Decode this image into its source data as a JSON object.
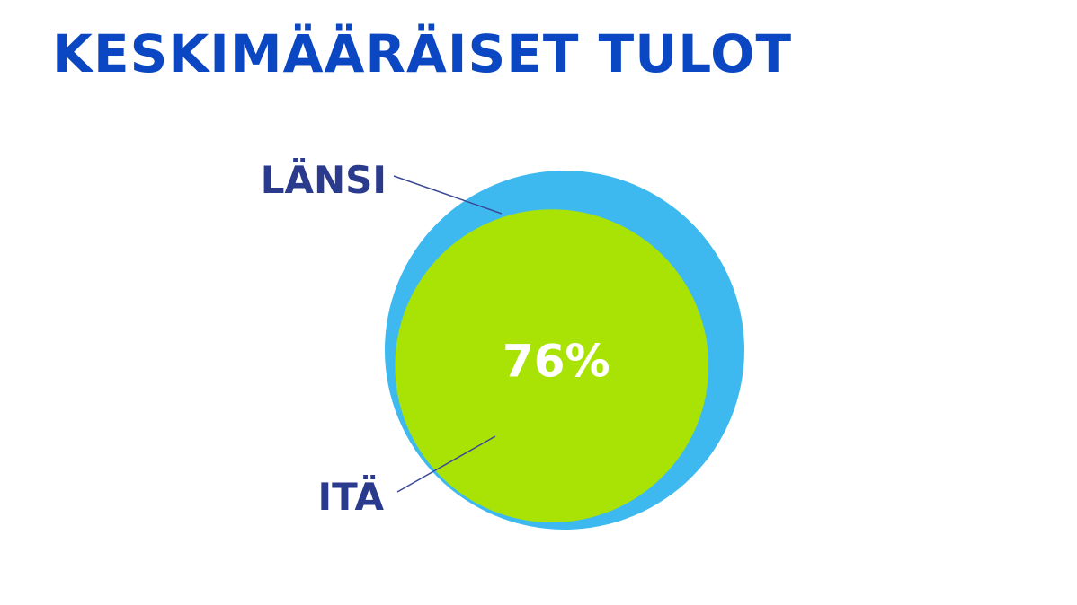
{
  "chart_data": {
    "type": "area-comparison-circles",
    "title": "KESKIMÄÄRÄISET TULOT",
    "series": [
      {
        "name": "LÄNSI",
        "value": 100,
        "color": "#3eb9f0"
      },
      {
        "name": "ITÄ",
        "value": 76,
        "color": "#a8e305"
      }
    ],
    "data_label": "76%"
  }
}
